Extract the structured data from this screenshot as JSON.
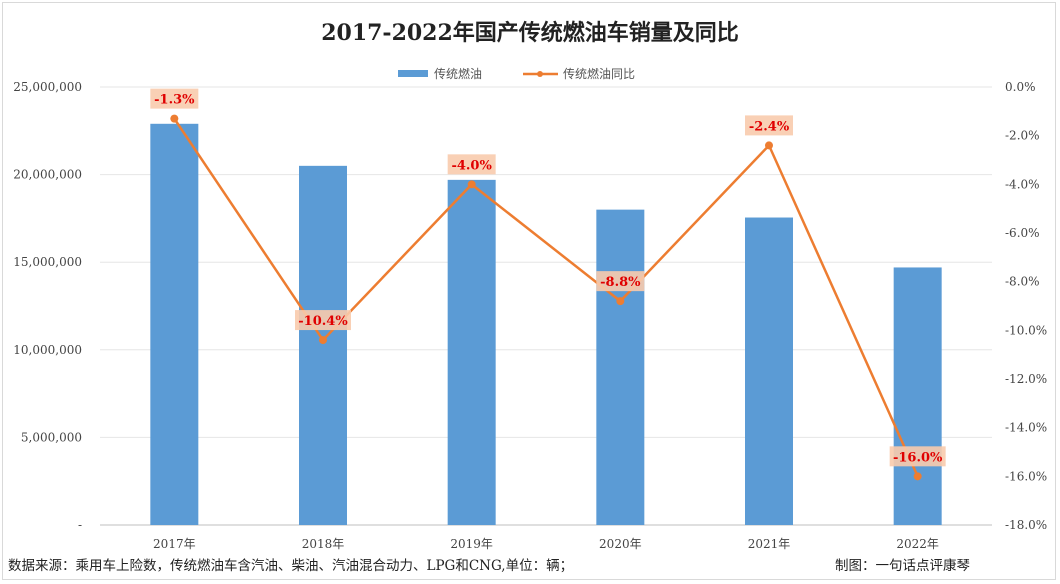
{
  "chart_data": {
    "type": "bar+line",
    "title": "2017-2022年国产传统燃油车销量及同比",
    "categories": [
      "2017年",
      "2018年",
      "2019年",
      "2020年",
      "2021年",
      "2022年"
    ],
    "series": [
      {
        "name": "传统燃油",
        "type": "bar",
        "axis": "left",
        "color": "#5b9bd5",
        "values": [
          22900000,
          20500000,
          19700000,
          18000000,
          17550000,
          14700000
        ]
      },
      {
        "name": "传统燃油同比",
        "type": "line",
        "axis": "right",
        "color": "#ed7d31",
        "values": [
          -1.3,
          -10.4,
          -4.0,
          -8.8,
          -2.4,
          -16.0
        ],
        "data_labels": [
          "-1.3%",
          "-10.4%",
          "-4.0%",
          "-8.8%",
          "-2.4%",
          "-16.0%"
        ]
      }
    ],
    "left_axis": {
      "ylim": [
        0,
        25000000
      ],
      "tick_labels": [
        "-",
        "5,000,000",
        "10,000,000",
        "15,000,000",
        "20,000,000",
        "25,000,000"
      ]
    },
    "right_axis": {
      "ylim": [
        -18,
        0
      ],
      "tick_labels": [
        "-18.0%",
        "-16.0%",
        "-14.0%",
        "-12.0%",
        "-10.0%",
        "-8.0%",
        "-6.0%",
        "-4.0%",
        "-2.0%",
        "0.0%"
      ]
    },
    "grid": true,
    "legend_position": "top",
    "label_color": "#e00000",
    "label_bg": "#f8cbad"
  },
  "footer": {
    "source": "数据来源：乘用车上险数，传统燃油车含汽油、柴油、汽油混合动力、LPG和CNG,单位：辆；",
    "credit": "制图：一句话点评康琴"
  }
}
